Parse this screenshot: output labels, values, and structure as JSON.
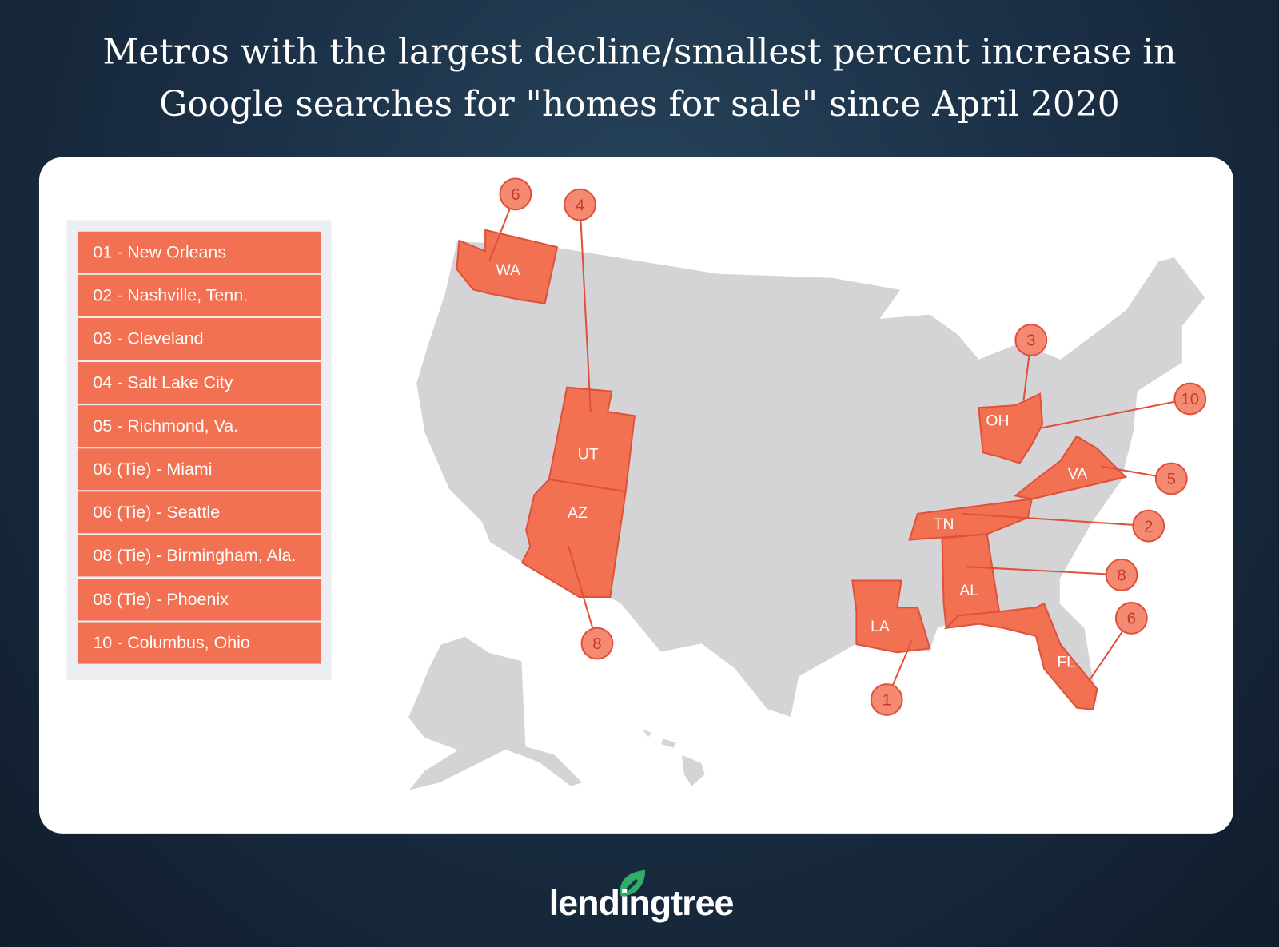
{
  "title_line1": "Metros with the largest decline/smallest percent increase in",
  "title_line2": "Google searches for \"homes for sale\" since April 2020",
  "ranking": [
    "01 - New Orleans",
    "02 - Nashville, Tenn.",
    "03 - Cleveland",
    "04 - Salt Lake City",
    "05 - Richmond, Va.",
    "06 (Tie) - Miami",
    "06 (Tie) - Seattle",
    "08 (Tie) - Birmingham, Ala.",
    "08 (Tie) - Phoenix",
    "10 - Columbus, Ohio"
  ],
  "states": {
    "WA": "WA",
    "UT": "UT",
    "AZ": "AZ",
    "OH": "OH",
    "VA": "VA",
    "TN": "TN",
    "AL": "AL",
    "LA": "LA",
    "FL": "FL"
  },
  "callouts": {
    "wa": "6",
    "ut": "4",
    "oh": "3",
    "oh10": "10",
    "va": "5",
    "tn": "2",
    "al": "8",
    "fl": "6",
    "la": "1",
    "az": "8"
  },
  "colors": {
    "highlight": "#f27152",
    "land": "#d4d3d5",
    "callout": "#f48a72",
    "background": "#1b3047"
  },
  "logo": {
    "text": "lendingtree",
    "mark": "®"
  }
}
